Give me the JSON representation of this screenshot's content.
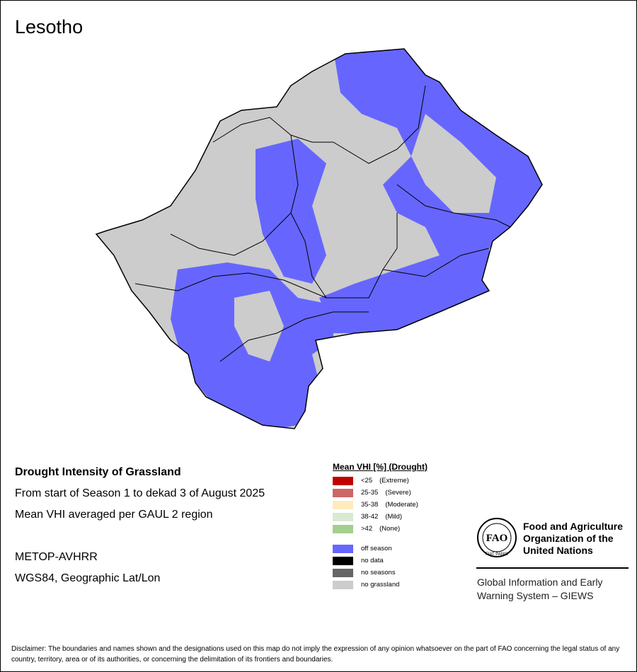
{
  "title": "Lesotho",
  "info": {
    "lines": [
      "Drought Intensity of Grassland",
      "From start of Season 1 to dekad 3 of August 2025",
      "Mean VHI averaged per GAUL 2 region"
    ],
    "sensor": "METOP-AVHRR",
    "projection": "WGS84, Geographic Lat/Lon"
  },
  "legend": {
    "title": "Mean VHI [%] (Drought)",
    "groups": [
      [
        {
          "label": "<25",
          "note": "(Extreme)",
          "color": "#c00000"
        },
        {
          "label": "25-35",
          "note": "(Severe)",
          "color": "#cd6666"
        },
        {
          "label": "35-38",
          "note": "(Moderate)",
          "color": "#ffebbe"
        },
        {
          "label": "38-42",
          "note": "(Mild)",
          "color": "#d9ead3"
        },
        {
          "label": ">42",
          "note": "(None)",
          "color": "#a3d08c"
        }
      ],
      [
        {
          "label": "off season",
          "color": "#6666ff"
        },
        {
          "label": "no data",
          "color": "#000000"
        },
        {
          "label": "no seasons",
          "color": "#666666"
        },
        {
          "label": "no grassland",
          "color": "#cccccc"
        }
      ]
    ]
  },
  "logo": {
    "letters": "FAO",
    "motto": "FIAT PANIS",
    "name": [
      "Food and Agriculture",
      "Organization of the",
      "United Nations"
    ],
    "giews": [
      "Global Information and Early",
      "Warning System – GIEWS"
    ]
  },
  "disclaimer": "Disclaimer: The boundaries and names shown and the designations used on this map do not imply the expression of any opinion whatsoever on the part of FAO concerning the legal status of any country, territory, area or of its authorities, or concerning the delimitation of its frontiers and boundaries."
}
